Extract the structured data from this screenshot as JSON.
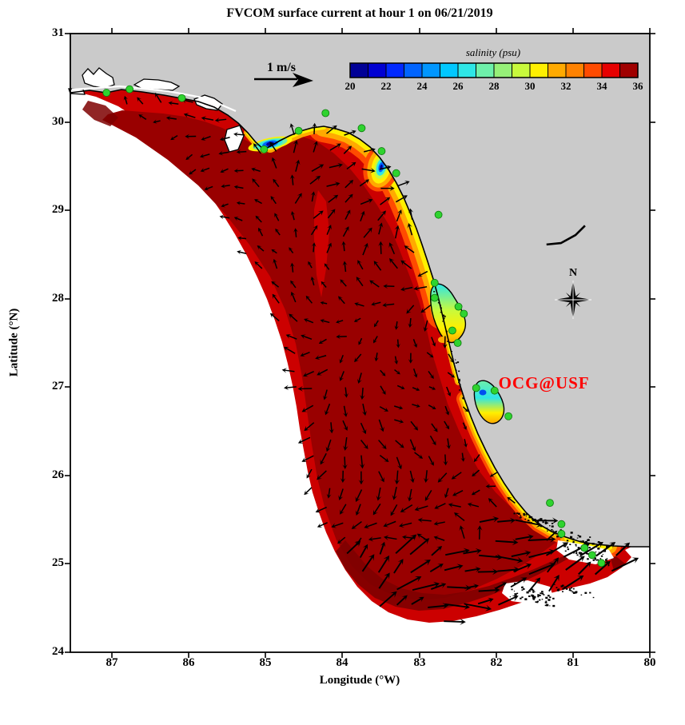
{
  "chart_data": {
    "type": "heatmap",
    "subtype": "geographic filled-contour map with quiver vectors",
    "title": "FVCOM surface current at hour 1 on 06/21/2019",
    "xlabel": "Longitude (°W)",
    "ylabel": "Latitude (°N)",
    "x_tick_labels": [
      "87",
      "86",
      "85",
      "84",
      "83",
      "82",
      "81",
      "80"
    ],
    "y_tick_labels": [
      "31",
      "30",
      "29",
      "28",
      "27",
      "26",
      "25",
      "24"
    ],
    "xlim_deg_w": [
      87.54,
      80.0
    ],
    "ylim_deg_n": [
      24.0,
      31.0
    ],
    "grid": false,
    "colorbar": {
      "label": "salinity (psu)",
      "tick_labels": [
        "20",
        "22",
        "24",
        "26",
        "28",
        "30",
        "32",
        "34",
        "36"
      ],
      "range": [
        20,
        36
      ],
      "n_segments": 16,
      "colors": [
        "#000096",
        "#0000D2",
        "#0028FF",
        "#0064FF",
        "#0096FF",
        "#00C8FF",
        "#2EE6E6",
        "#6EF0AA",
        "#96F078",
        "#C8FA3C",
        "#FFF000",
        "#FFAA00",
        "#FF8200",
        "#FF4B00",
        "#E60000",
        "#A00000"
      ],
      "position": "top, over land area"
    },
    "scale_arrow": {
      "label": "1 m/s",
      "direction": "east"
    },
    "compass": {
      "label": "N"
    },
    "annotation": {
      "text": "OCG@USF",
      "color": "#FF0000",
      "lon_w": 81.97,
      "lat_n": 27.05
    },
    "field_description": {
      "salinity_offshore_psu": 36,
      "salinity_midshelf_psu": 35,
      "coastal_fringe": "yellow-orange bands (29-33 psu) along Big Bend, Keys and SW Florida coast",
      "low_salinity_patches": "blue/cyan (20-27 psu) at Apalachicola Bay, Cedar Key/Suwannee, Tampa Bay, Charlotte Harbor",
      "currents": "weak multidirectional vectors on shelf; strong NE Florida Current flow near the Keys"
    },
    "stations_lon_lat": [
      [
        87.07,
        30.33
      ],
      [
        86.77,
        30.37
      ],
      [
        86.09,
        30.27
      ],
      [
        85.02,
        29.69
      ],
      [
        84.57,
        29.9
      ],
      [
        84.22,
        30.1
      ],
      [
        83.75,
        29.93
      ],
      [
        83.49,
        29.67
      ],
      [
        83.3,
        29.42
      ],
      [
        82.75,
        28.95
      ],
      [
        82.8,
        28.18
      ],
      [
        82.8,
        28.01
      ],
      [
        82.49,
        27.91
      ],
      [
        82.42,
        27.83
      ],
      [
        82.57,
        27.64
      ],
      [
        82.5,
        27.5
      ],
      [
        82.26,
        26.99
      ],
      [
        82.02,
        26.96
      ],
      [
        81.84,
        26.67
      ],
      [
        81.3,
        25.69
      ],
      [
        81.15,
        25.45
      ],
      [
        81.15,
        25.34
      ],
      [
        80.85,
        25.18
      ],
      [
        80.75,
        25.1
      ],
      [
        80.63,
        25.01
      ]
    ],
    "map_colors": {
      "land": "#CACACA",
      "outside_domain": "#FFFFFF",
      "sea_main_red": "#CC0000",
      "sea_dark_red": "#990000",
      "sea_maroon": "#7E0000",
      "coastline": "#000000",
      "station_green": "#2FD32F"
    }
  }
}
